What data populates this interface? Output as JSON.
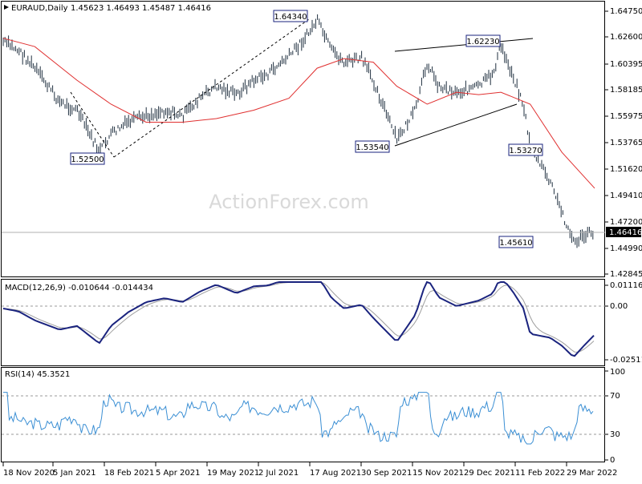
{
  "header": {
    "symbol": "EURAUD,Daily",
    "ohlc": "1.45623 1.46493 1.45487 1.46416"
  },
  "watermark": "ActionForex.com",
  "colors": {
    "bars": "#1f2f3f",
    "ma": "#e03030",
    "macd_line": "#1a237e",
    "macd_signal": "#9e9e9e",
    "rsi_line": "#3b8fd4",
    "grid_dash": "#999999",
    "last_price_line": "#b0b0b0"
  },
  "price_axis": {
    "ticks": [
      "1.64750",
      "1.62600",
      "1.60395",
      "1.58185",
      "1.55975",
      "1.53765",
      "1.51620",
      "1.49410",
      "1.47200",
      "1.44990",
      "1.42845"
    ],
    "last_price": "1.46416"
  },
  "macd": {
    "header": "MACD(12,26,9) -0.010644 -0.014434",
    "ticks": [
      "0.011168",
      "0.00",
      "-0.025117"
    ]
  },
  "rsi": {
    "header": "RSI(14) 45.3521",
    "ticks": [
      "100",
      "70",
      "30",
      "0"
    ]
  },
  "date_axis": [
    "18 Nov 2020",
    "5 Jan 2021",
    "18 Feb 2021",
    "5 Apr 2021",
    "19 May 2021",
    "2 Jul 2021",
    "17 Aug 2021",
    "30 Sep 2021",
    "15 Nov 2021",
    "29 Dec 2021",
    "11 Feb 2022",
    "29 Mar 2022"
  ],
  "annotations": [
    {
      "label": "1.64340",
      "value": 1.6434,
      "date": "2021-08-13"
    },
    {
      "label": "1.62230",
      "value": 1.6223,
      "date": "2022-01-17"
    },
    {
      "label": "1.52500",
      "value": 1.525,
      "date": "2021-02-08"
    },
    {
      "label": "1.53540",
      "value": 1.5354,
      "date": "2021-10-20"
    },
    {
      "label": "1.53270",
      "value": 1.5327,
      "date": "2022-02-10"
    },
    {
      "label": "1.45610",
      "value": 1.4561,
      "date": "2022-02-28"
    }
  ],
  "chart_data": {
    "type": "line",
    "xlabel": "",
    "ylabel": "",
    "ylim": [
      1.42845,
      1.6475
    ],
    "grid": false,
    "series": [
      {
        "x": [
          "2020-11-18",
          "2020-12-01",
          "2020-12-15",
          "2021-01-05",
          "2021-01-20",
          "2021-02-08",
          "2021-02-18",
          "2021-03-05",
          "2021-03-20",
          "2021-04-05",
          "2021-04-20",
          "2021-05-05",
          "2021-05-19",
          "2021-06-05",
          "2021-06-20",
          "2021-07-02",
          "2021-07-20",
          "2021-08-05",
          "2021-08-13",
          "2021-08-25",
          "2021-09-05",
          "2021-09-20",
          "2021-09-30",
          "2021-10-20",
          "2021-11-05",
          "2021-11-15",
          "2021-11-25",
          "2021-12-10",
          "2021-12-29",
          "2022-01-10",
          "2022-01-17",
          "2022-01-28",
          "2022-02-05",
          "2022-02-11",
          "2022-02-28",
          "2022-03-10",
          "2022-03-20",
          "2022-03-29",
          "2022-04-07"
        ],
        "values": [
          1.622,
          1.615,
          1.6,
          1.572,
          1.565,
          1.53,
          1.545,
          1.555,
          1.56,
          1.565,
          1.56,
          1.575,
          1.585,
          1.578,
          1.59,
          1.595,
          1.61,
          1.628,
          1.64,
          1.615,
          1.605,
          1.608,
          1.59,
          1.54,
          1.565,
          1.605,
          1.585,
          1.58,
          1.585,
          1.595,
          1.618,
          1.592,
          1.57,
          1.535,
          1.505,
          1.48,
          1.455,
          1.46,
          1.464
        ]
      },
      {
        "x": [
          "2020-11-18",
          "2020-12-15",
          "2021-01-20",
          "2021-02-18",
          "2021-03-20",
          "2021-04-20",
          "2021-05-19",
          "2021-06-20",
          "2021-07-20",
          "2021-08-13",
          "2021-09-05",
          "2021-09-30",
          "2021-10-20",
          "2021-11-15",
          "2021-12-10",
          "2021-12-29",
          "2022-01-17",
          "2022-02-11",
          "2022-03-10",
          "2022-04-07"
        ],
        "values": [
          1.625,
          1.618,
          1.59,
          1.57,
          1.555,
          1.555,
          1.558,
          1.565,
          1.575,
          1.6,
          1.608,
          1.605,
          1.585,
          1.57,
          1.58,
          1.578,
          1.58,
          1.57,
          1.53,
          1.5
        ]
      }
    ]
  }
}
